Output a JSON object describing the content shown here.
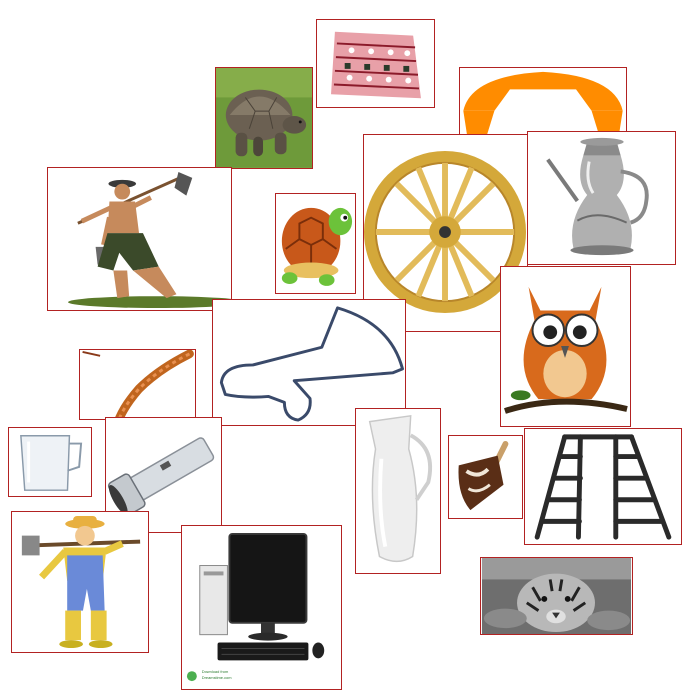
{
  "collage": {
    "frame_color": "#b22222",
    "tiles": [
      {
        "name": "rug-tile",
        "subject": "patterned rug"
      },
      {
        "name": "tortoise-photo-tile",
        "subject": "giant tortoise photo"
      },
      {
        "name": "telephone-handset-tile",
        "subject": "orange telephone handset"
      },
      {
        "name": "farmer-hoe-tile",
        "subject": "farmer carrying hoe and bucket"
      },
      {
        "name": "cartoon-turtle-tile",
        "subject": "cartoon turtle"
      },
      {
        "name": "wagon-wheel-tile",
        "subject": "wooden wagon wheel"
      },
      {
        "name": "teapot-tile",
        "subject": "silver teapot"
      },
      {
        "name": "owl-tile",
        "subject": "cartoon owl on branch"
      },
      {
        "name": "megaphone-outline-tile",
        "subject": "megaphone outline"
      },
      {
        "name": "rope-tile",
        "subject": "rope"
      },
      {
        "name": "glass-jug-tile",
        "subject": "glass jug"
      },
      {
        "name": "flashlight-tile",
        "subject": "flashlight"
      },
      {
        "name": "milk-pitcher-tile",
        "subject": "white pitcher"
      },
      {
        "name": "ice-cream-tile",
        "subject": "chocolate ice cream bar"
      },
      {
        "name": "ladder-tile",
        "subject": "step ladder"
      },
      {
        "name": "cartoon-farmer-tile",
        "subject": "cartoon farmer with hoe"
      },
      {
        "name": "computer-tile",
        "subject": "desktop computer"
      },
      {
        "name": "tiger-tile",
        "subject": "tiger photo"
      }
    ]
  },
  "computer_watermark": {
    "line1": "Download from",
    "line2": "Dreamstime.com"
  }
}
